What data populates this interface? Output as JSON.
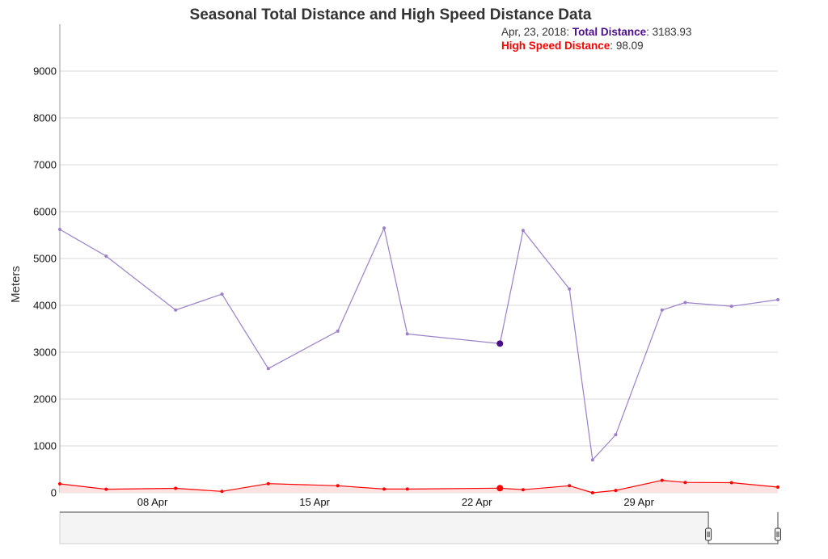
{
  "chart_data": {
    "type": "line",
    "title": "Seasonal Total Distance and High Speed Distance Data",
    "xlabel": "",
    "ylabel": "Meters",
    "ylim": [
      0,
      10000
    ],
    "yticks": [
      0,
      1000,
      2000,
      3000,
      4000,
      5000,
      6000,
      7000,
      8000,
      9000
    ],
    "xlim": [
      "2018-04-04",
      "2018-05-05"
    ],
    "xticks": [
      {
        "date": "2018-04-08",
        "label": "08 Apr"
      },
      {
        "date": "2018-04-15",
        "label": "15 Apr"
      },
      {
        "date": "2018-04-22",
        "label": "22 Apr"
      },
      {
        "date": "2018-04-29",
        "label": "29 Apr"
      }
    ],
    "grid": true,
    "series": [
      {
        "name": "Total Distance",
        "color": "#9b7fc8",
        "highlight_color": "#4b0d8c",
        "area": false,
        "points": [
          {
            "x": "2018-04-04",
            "y": 5620
          },
          {
            "x": "2018-04-06",
            "y": 5050
          },
          {
            "x": "2018-04-09",
            "y": 3900
          },
          {
            "x": "2018-04-11",
            "y": 4240
          },
          {
            "x": "2018-04-13",
            "y": 2650
          },
          {
            "x": "2018-04-16",
            "y": 3450
          },
          {
            "x": "2018-04-18",
            "y": 5650
          },
          {
            "x": "2018-04-19",
            "y": 3390
          },
          {
            "x": "2018-04-23",
            "y": 3183.93
          },
          {
            "x": "2018-04-24",
            "y": 5600
          },
          {
            "x": "2018-04-26",
            "y": 4350
          },
          {
            "x": "2018-04-27",
            "y": 700
          },
          {
            "x": "2018-04-28",
            "y": 1240
          },
          {
            "x": "2018-04-30",
            "y": 3900
          },
          {
            "x": "2018-05-01",
            "y": 4060
          },
          {
            "x": "2018-05-03",
            "y": 3980
          },
          {
            "x": "2018-05-05",
            "y": 4120
          }
        ]
      },
      {
        "name": "High Speed Distance",
        "color": "#ff0000",
        "highlight_color": "#ff0000",
        "area": true,
        "area_color": "#fde2e2",
        "points": [
          {
            "x": "2018-04-04",
            "y": 190
          },
          {
            "x": "2018-04-06",
            "y": 75
          },
          {
            "x": "2018-04-09",
            "y": 95
          },
          {
            "x": "2018-04-11",
            "y": 30
          },
          {
            "x": "2018-04-13",
            "y": 195
          },
          {
            "x": "2018-04-16",
            "y": 150
          },
          {
            "x": "2018-04-18",
            "y": 80
          },
          {
            "x": "2018-04-19",
            "y": 80
          },
          {
            "x": "2018-04-23",
            "y": 98.09
          },
          {
            "x": "2018-04-24",
            "y": 65
          },
          {
            "x": "2018-04-26",
            "y": 150
          },
          {
            "x": "2018-04-27",
            "y": 0
          },
          {
            "x": "2018-04-28",
            "y": 50
          },
          {
            "x": "2018-04-30",
            "y": 265
          },
          {
            "x": "2018-05-01",
            "y": 220
          },
          {
            "x": "2018-05-03",
            "y": 215
          },
          {
            "x": "2018-05-05",
            "y": 120
          }
        ]
      }
    ],
    "highlighted_date": "2018-04-23",
    "tooltip": {
      "date_label": "Apr, 23, 2018",
      "lines": [
        {
          "name": "Total Distance",
          "value": "3183.93",
          "color": "#4b0d8c"
        },
        {
          "name": "High Speed Distance",
          "value": "98.09",
          "color": "#ff0000"
        }
      ]
    },
    "navigator": {
      "selected_start": "2018-05-02",
      "selected_end": "2018-05-05"
    }
  }
}
